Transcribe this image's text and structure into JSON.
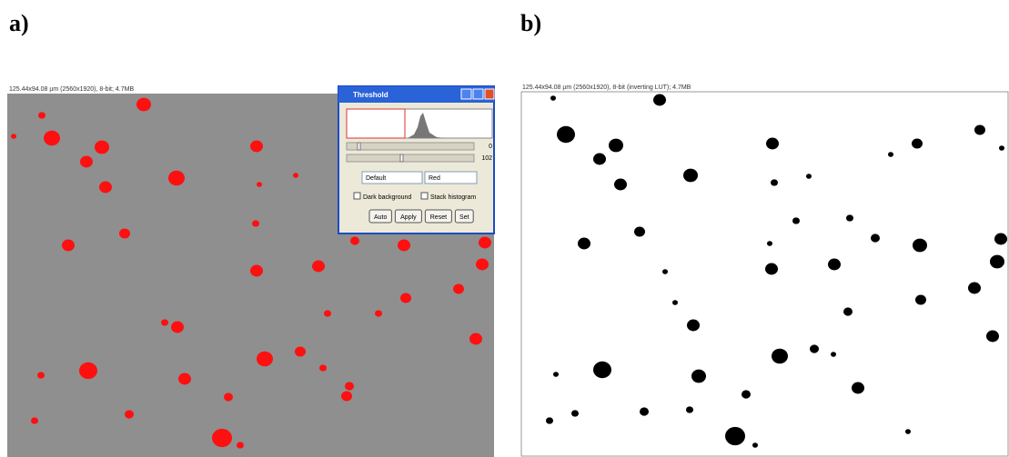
{
  "panels": [
    {
      "label": "a)",
      "header": "125.44x94.08 µm (2560x1920), 8-bit; 4.7MB"
    },
    {
      "label": "b)",
      "header": "125.44x94.08 µm (2560x1920), 8-bit (inverting LUT); 4.7MB"
    }
  ],
  "dialog": {
    "title": "Threshold",
    "slider_values": [
      "0",
      "102"
    ],
    "method": "Default",
    "mode": "Red",
    "checkboxes": [
      "Dark background",
      "Stack histogram"
    ],
    "buttons": [
      "Auto",
      "Apply",
      "Reset",
      "Set"
    ]
  }
}
